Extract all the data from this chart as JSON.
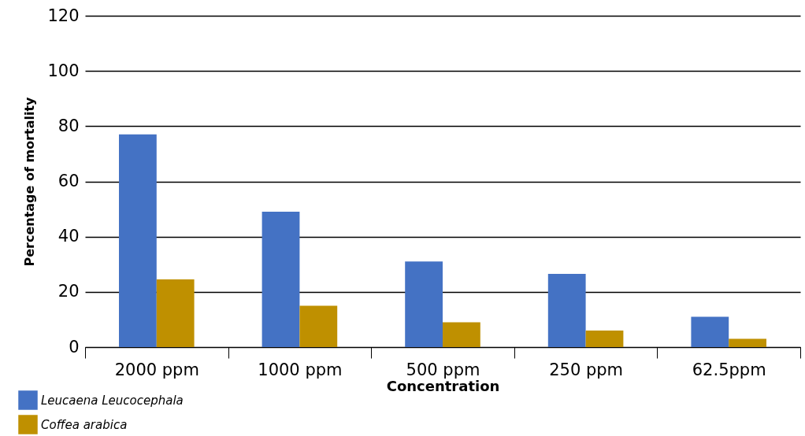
{
  "chart_data": {
    "type": "bar",
    "xlabel": "Concentration",
    "ylabel": "Percentage of mortality",
    "categories": [
      "2000 ppm",
      "1000 ppm",
      "500 ppm",
      "250 ppm",
      "62.5ppm"
    ],
    "series": [
      {
        "name": "Leucaena Leucocephala",
        "color": "#4472c4",
        "values": [
          77,
          49,
          31,
          26.5,
          11
        ]
      },
      {
        "name": "Coffea arabica",
        "color": "#bf9000",
        "values": [
          24.5,
          15,
          9,
          6,
          3
        ]
      }
    ],
    "ylim": [
      0,
      120
    ],
    "yticks": [
      0,
      20,
      40,
      60,
      80,
      100,
      120
    ],
    "grid": "y",
    "legend": "bottom left"
  }
}
